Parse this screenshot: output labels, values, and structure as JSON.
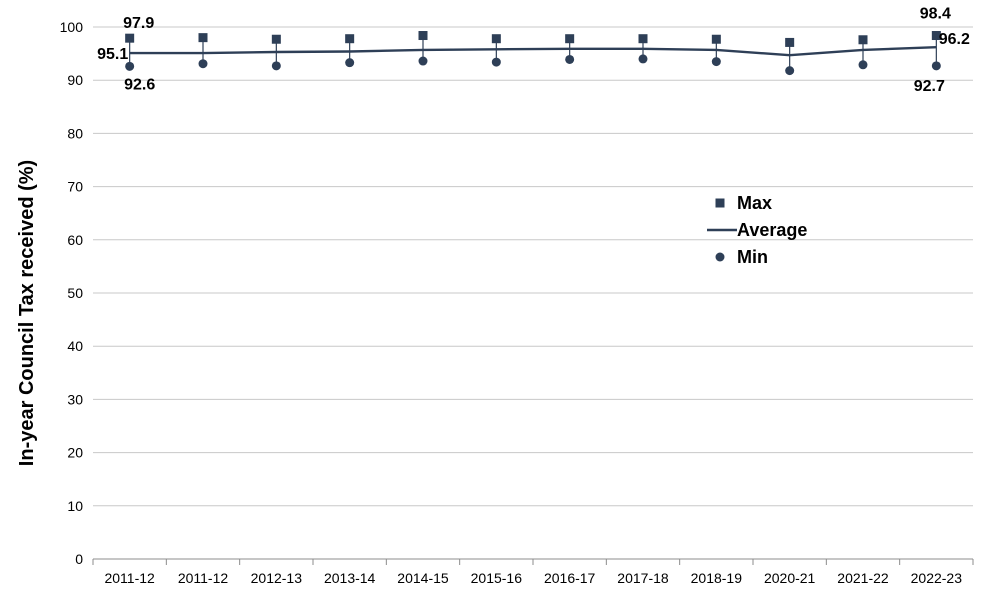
{
  "chart_data": {
    "type": "line",
    "ylabel": "In-year Council Tax received (%)",
    "ylim": [
      0,
      100
    ],
    "yticks": [
      0,
      10,
      20,
      30,
      40,
      50,
      60,
      70,
      80,
      90,
      100
    ],
    "grid": true,
    "legend_position": "right",
    "categories": [
      "2011-12",
      "2011-12",
      "2012-13",
      "2013-14",
      "2014-15",
      "2015-16",
      "2016-17",
      "2017-18",
      "2018-19",
      "2020-21",
      "2021-22",
      "2022-23"
    ],
    "series": [
      {
        "name": "Max",
        "marker": "square",
        "color": "#2e3f57",
        "values": [
          97.9,
          98.0,
          97.7,
          97.8,
          98.4,
          97.8,
          97.8,
          97.8,
          97.7,
          97.1,
          97.6,
          98.4
        ]
      },
      {
        "name": "Average",
        "marker": "line",
        "color": "#2e3f57",
        "values": [
          95.1,
          95.1,
          95.3,
          95.4,
          95.7,
          95.8,
          95.9,
          95.9,
          95.7,
          94.7,
          95.7,
          96.2
        ]
      },
      {
        "name": "Min",
        "marker": "circle",
        "color": "#2e3f57",
        "values": [
          92.6,
          93.1,
          92.7,
          93.3,
          93.6,
          93.4,
          93.9,
          94.0,
          93.5,
          91.8,
          92.9,
          92.7
        ]
      }
    ],
    "data_labels": [
      {
        "text": "97.9"
      },
      {
        "text": "95.1"
      },
      {
        "text": "92.6"
      },
      {
        "text": "98.4"
      },
      {
        "text": "96.2"
      },
      {
        "text": "92.7"
      }
    ]
  }
}
